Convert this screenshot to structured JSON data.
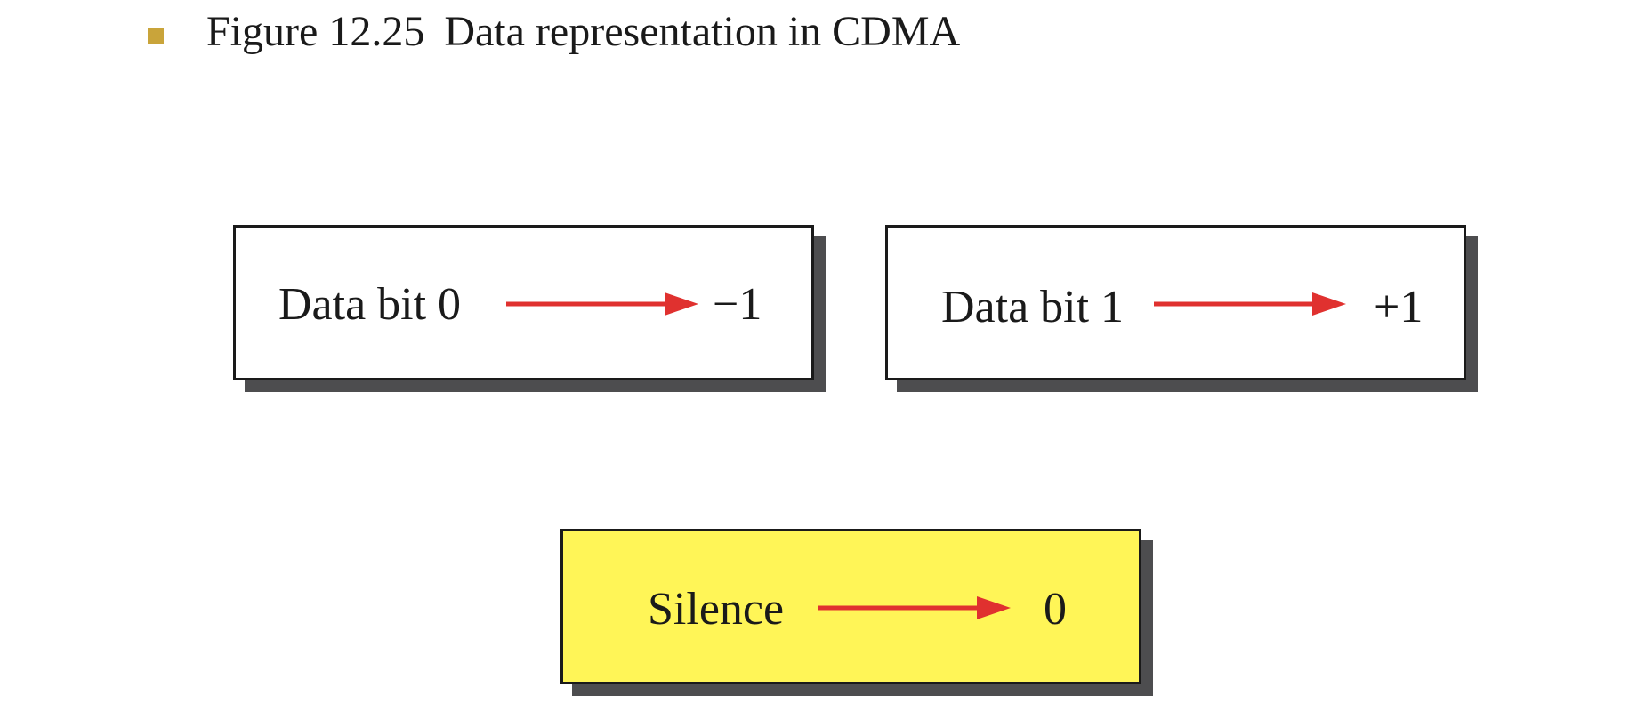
{
  "header": {
    "figure_number": "Figure 12.25",
    "caption": "Data representation in CDMA"
  },
  "colors": {
    "bullet": "#c9a43a",
    "arrow": "#e0312f",
    "box_default": "#ffffff",
    "box_highlight": "#fff557",
    "shadow": "#4d4d4f"
  },
  "mappings": [
    {
      "label": "Data bit 0",
      "value": "−1",
      "fill": "#ffffff"
    },
    {
      "label": "Data bit 1",
      "value": "+1",
      "fill": "#ffffff"
    },
    {
      "label": "Silence",
      "value": "0",
      "fill": "#fff557"
    }
  ]
}
